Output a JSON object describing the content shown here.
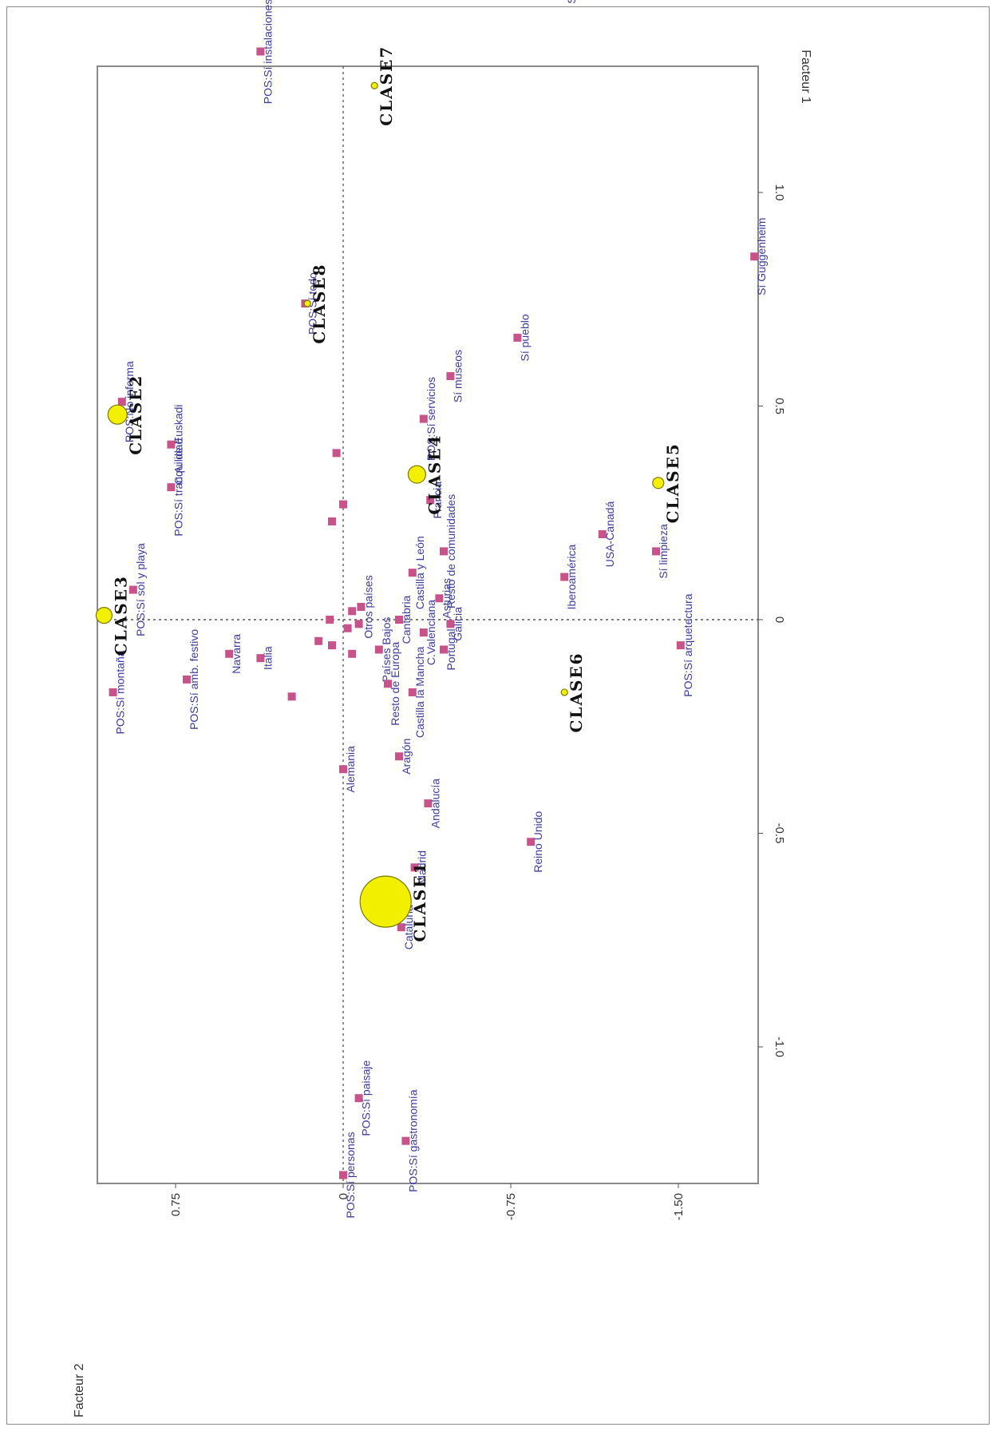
{
  "chart_data": {
    "type": "scatter",
    "xlabel": "Facteur 1",
    "ylabel": "Facteur 2",
    "xlim": [
      -1.3,
      1.5
    ],
    "ylim": [
      -1.9,
      1.0
    ],
    "x_ticks": [
      {
        "value": -1.0,
        "label": "-1.0"
      },
      {
        "value": -0.5,
        "label": "-0.5"
      },
      {
        "value": 0,
        "label": "0"
      },
      {
        "value": 0.5,
        "label": "0.5"
      },
      {
        "value": 1.0,
        "label": "1.0"
      }
    ],
    "y_ticks": [
      {
        "value": 0.75,
        "label": "0.75"
      },
      {
        "value": 0,
        "label": "0"
      },
      {
        "value": -0.75,
        "label": "-0.75"
      },
      {
        "value": -1.5,
        "label": "-1.50"
      }
    ],
    "grid": false,
    "reference_lines": [
      0,
      0
    ],
    "colors": {
      "point": "#c8528a",
      "class_fill": "#f2ef00",
      "class_stroke": "#7a7a00",
      "label": "#3d3d9e",
      "class_label": "#111111"
    },
    "classes": [
      {
        "name": "CLASE1",
        "x": -0.66,
        "y": -0.19,
        "size": 32
      },
      {
        "name": "CLASE2",
        "x": 0.48,
        "y": 1.01,
        "size": 12
      },
      {
        "name": "CLASE3",
        "x": 0.01,
        "y": 1.07,
        "size": 10
      },
      {
        "name": "CLASE4",
        "x": 0.34,
        "y": -0.33,
        "size": 11
      },
      {
        "name": "CLASE5",
        "x": 0.32,
        "y": -1.41,
        "size": 7
      },
      {
        "name": "CLASE6",
        "x": -0.17,
        "y": -0.99,
        "size": 4
      },
      {
        "name": "CLASE7",
        "x": 1.25,
        "y": -0.14,
        "size": 4
      },
      {
        "name": "CLASE8",
        "x": 0.74,
        "y": 0.16,
        "size": 4
      }
    ],
    "points": [
      {
        "label": "POS:Sí montaña",
        "x": -0.17,
        "y": 1.03
      },
      {
        "label": "POS:Sí sol y playa",
        "x": 0.07,
        "y": 0.94
      },
      {
        "label": "POS:Sí amb. festivo",
        "x": -0.14,
        "y": 0.7
      },
      {
        "label": "Navarra",
        "x": -0.08,
        "y": 0.51
      },
      {
        "label": "Italia",
        "x": -0.09,
        "y": 0.37
      },
      {
        "label": "POS:Sí tranquilidad",
        "x": 0.31,
        "y": 0.77
      },
      {
        "label": "C.A. de Euskadi",
        "x": 0.41,
        "y": 0.77
      },
      {
        "label": "POS:No informa",
        "x": 0.51,
        "y": 0.99
      },
      {
        "label": "POS:Sí todo",
        "x": 0.74,
        "y": 0.17
      },
      {
        "label": "POS:Sí instalaciones",
        "x": 1.33,
        "y": 0.37
      },
      {
        "label": "Sí comunic.",
        "x": 1.51,
        "y": -0.99
      },
      {
        "label": "Sí Guggenheim",
        "x": 0.85,
        "y": -1.84
      },
      {
        "label": "Sí pueblo",
        "x": 0.66,
        "y": -0.78
      },
      {
        "label": "Sí museos",
        "x": 0.57,
        "y": -0.48
      },
      {
        "label": "POS:Sí servicios",
        "x": 0.47,
        "y": -0.36
      },
      {
        "label": "Resto de comunidades",
        "x": 0.16,
        "y": -0.45
      },
      {
        "label": "Francia",
        "x": 0.28,
        "y": -0.39
      },
      {
        "label": "Castilla y León",
        "x": 0.11,
        "y": -0.31
      },
      {
        "label": "Asturias",
        "x": 0.05,
        "y": -0.43
      },
      {
        "label": "Galicia",
        "x": -0.01,
        "y": -0.48
      },
      {
        "label": "Cantabria",
        "x": 0.0,
        "y": -0.25
      },
      {
        "label": "Otros países",
        "x": 0.03,
        "y": -0.08
      },
      {
        "label": "Países Bajos",
        "x": -0.07,
        "y": -0.16
      },
      {
        "label": "Resto de Europa",
        "x": -0.15,
        "y": -0.2
      },
      {
        "label": "Castilla la Mancha",
        "x": -0.17,
        "y": -0.31
      },
      {
        "label": "C.Valenciana",
        "x": -0.03,
        "y": -0.36
      },
      {
        "label": "Portugal",
        "x": -0.07,
        "y": -0.45
      },
      {
        "label": "Aragón",
        "x": -0.32,
        "y": -0.25
      },
      {
        "label": "Alemania",
        "x": -0.35,
        "y": 0.0
      },
      {
        "label": "Andalucía",
        "x": -0.43,
        "y": -0.38
      },
      {
        "label": "Madrid",
        "x": -0.58,
        "y": -0.32
      },
      {
        "label": "Cataluña",
        "x": -0.72,
        "y": -0.26
      },
      {
        "label": "Reino Unido",
        "x": -0.52,
        "y": -0.84
      },
      {
        "label": "Iberoamérica",
        "x": 0.1,
        "y": -0.99
      },
      {
        "label": "USA-Canadá",
        "x": 0.2,
        "y": -1.16
      },
      {
        "label": "Sí limpieza",
        "x": 0.16,
        "y": -1.4
      },
      {
        "label": "POS:Sí arquetectura",
        "x": -0.06,
        "y": -1.51
      },
      {
        "label": "POS:Sí paisaje",
        "x": -1.12,
        "y": -0.07
      },
      {
        "label": "POS:Sí gastronomía",
        "x": -1.22,
        "y": -0.28
      },
      {
        "label": "POS:Sí personas",
        "x": -1.3,
        "y": 0.0
      }
    ],
    "extra_points": [
      {
        "x": -0.18,
        "y": 0.23
      },
      {
        "x": -0.05,
        "y": 0.11
      },
      {
        "x": -0.06,
        "y": 0.05
      },
      {
        "x": 0.0,
        "y": 0.06
      },
      {
        "x": -0.02,
        "y": -0.02
      },
      {
        "x": 0.39,
        "y": 0.03
      },
      {
        "x": 0.27,
        "y": 0.0
      },
      {
        "x": 0.23,
        "y": 0.05
      },
      {
        "x": 0.02,
        "y": -0.04
      },
      {
        "x": -0.01,
        "y": -0.07
      },
      {
        "x": -0.08,
        "y": -0.04
      }
    ]
  }
}
